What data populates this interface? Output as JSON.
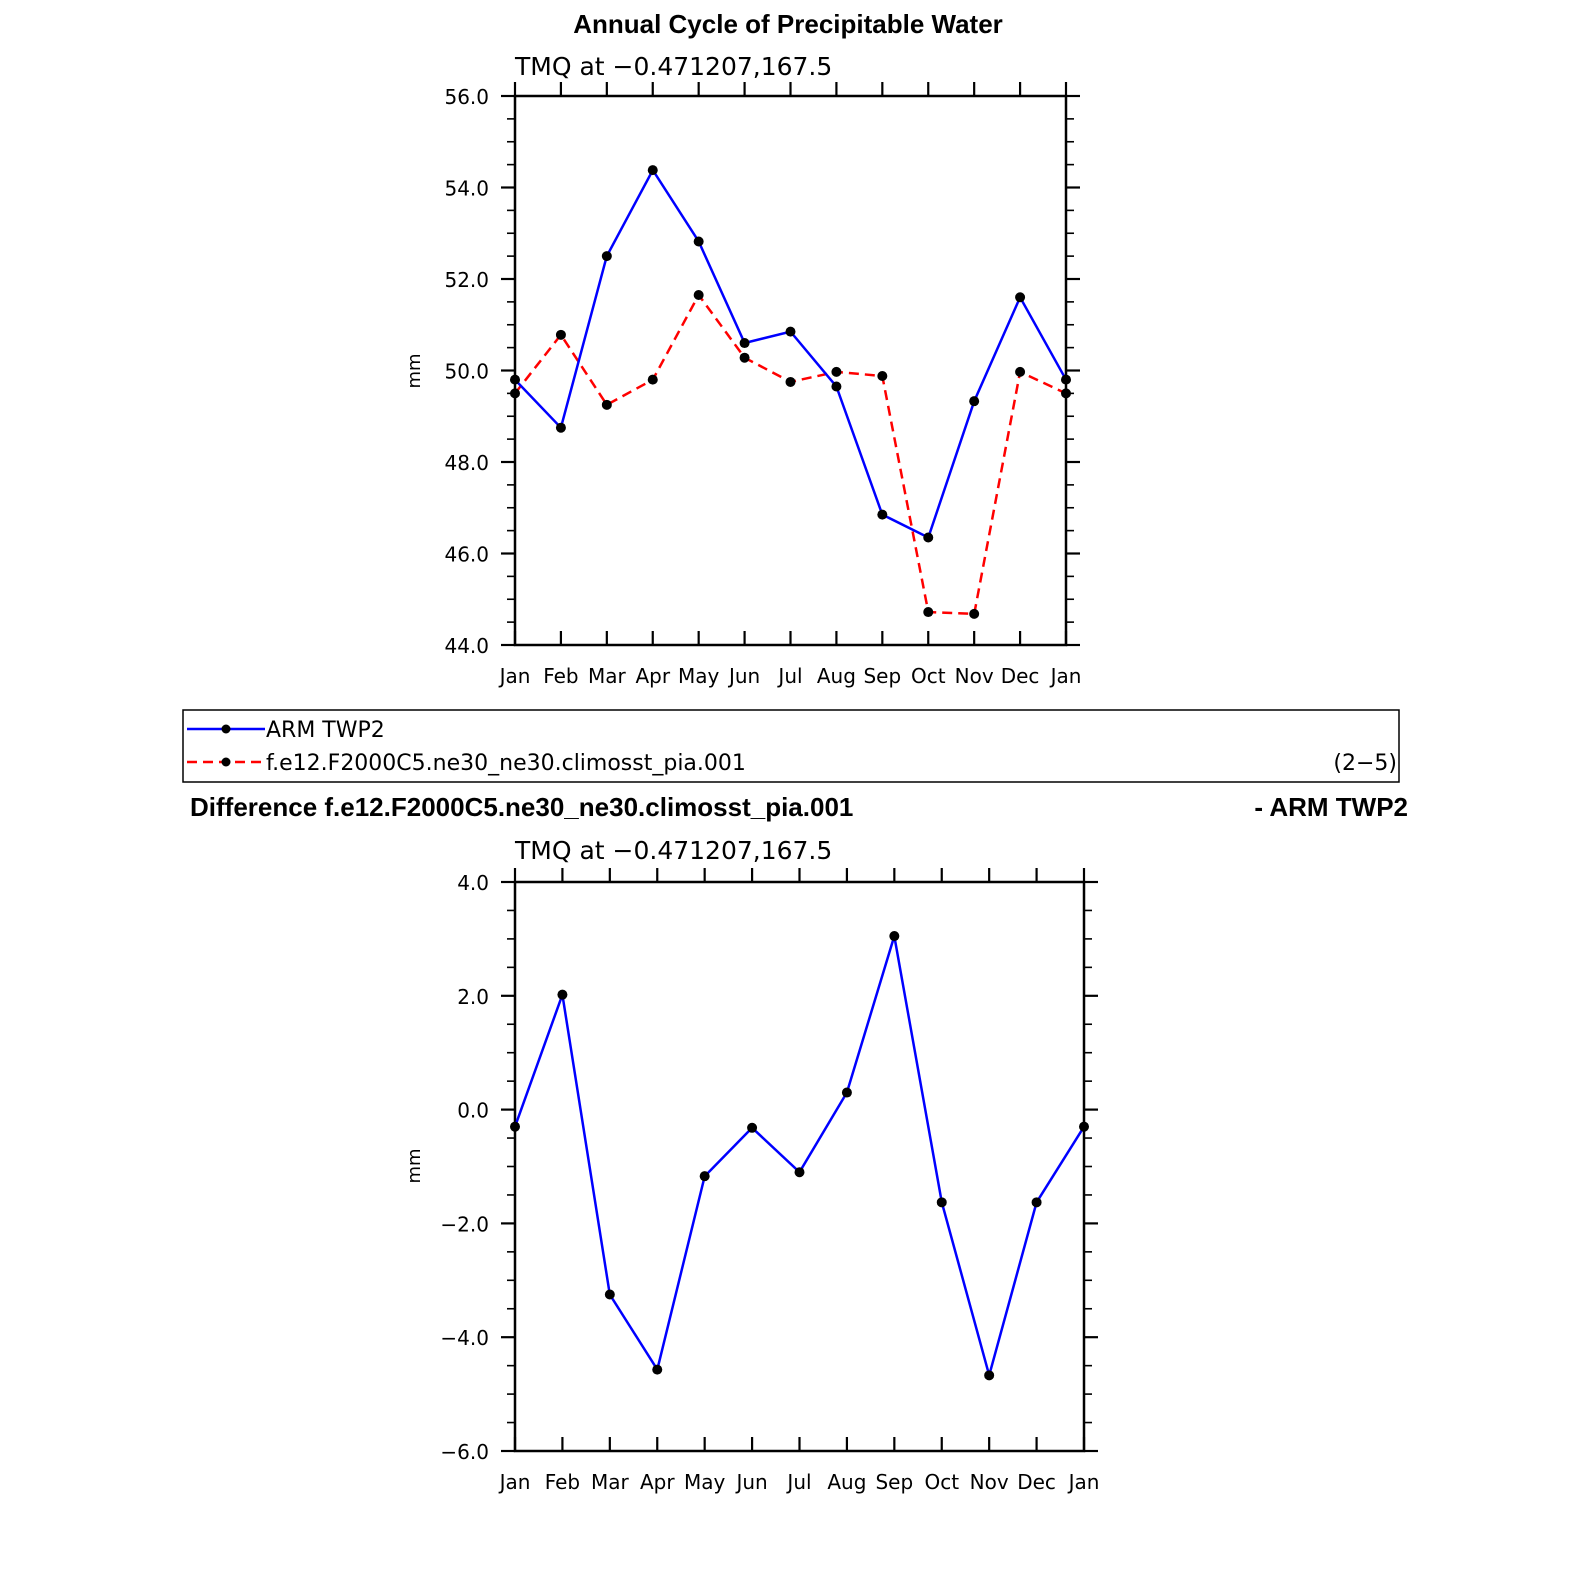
{
  "chart_data": [
    {
      "type": "line",
      "title": "Annual Cycle of Precipitable Water",
      "subtitle": "TMQ at −0.471207,167.5",
      "xlabel": "",
      "ylabel": "mm",
      "categories": [
        "Jan",
        "Feb",
        "Mar",
        "Apr",
        "May",
        "Jun",
        "Jul",
        "Aug",
        "Sep",
        "Oct",
        "Nov",
        "Dec",
        "Jan"
      ],
      "ylim": [
        44.0,
        56.0
      ],
      "yticks": [
        44.0,
        46.0,
        48.0,
        50.0,
        52.0,
        54.0,
        56.0
      ],
      "ytick_labels": [
        "44.0",
        "46.0",
        "48.0",
        "50.0",
        "52.0",
        "54.0",
        "56.0"
      ],
      "series": [
        {
          "name": "ARM TWP2",
          "color": "#0000ff",
          "style": "solid",
          "values": [
            49.8,
            48.75,
            52.5,
            54.38,
            52.82,
            50.6,
            50.85,
            49.65,
            46.85,
            46.35,
            49.33,
            51.6,
            49.8
          ]
        },
        {
          "name": "f.e12.F2000C5.ne30_ne30.climosst_pia.001",
          "color": "#ff0000",
          "style": "dashed",
          "values": [
            49.5,
            50.78,
            49.25,
            49.8,
            51.65,
            50.28,
            49.75,
            49.97,
            49.88,
            44.72,
            44.68,
            49.97,
            49.5
          ]
        }
      ],
      "legend": {
        "entries": [
          "ARM TWP2",
          "f.e12.F2000C5.ne30_ne30.climosst_pia.001"
        ],
        "note": "(2−5)",
        "placement": "below"
      }
    },
    {
      "type": "line",
      "title_left": "Difference f.e12.F2000C5.ne30_ne30.climosst_pia.001",
      "title_right": "- ARM TWP2",
      "subtitle": "TMQ at −0.471207,167.5",
      "xlabel": "",
      "ylabel": "mm",
      "categories": [
        "Jan",
        "Feb",
        "Mar",
        "Apr",
        "May",
        "Jun",
        "Jul",
        "Aug",
        "Sep",
        "Oct",
        "Nov",
        "Dec",
        "Jan"
      ],
      "ylim": [
        -6.0,
        4.0
      ],
      "yticks": [
        -6.0,
        -4.0,
        -2.0,
        0.0,
        2.0,
        4.0
      ],
      "ytick_labels": [
        "−6.0",
        "−4.0",
        "−2.0",
        "0.0",
        "2.0",
        "4.0"
      ],
      "series": [
        {
          "name": "Difference",
          "color": "#0000ff",
          "style": "solid",
          "values": [
            -0.3,
            2.02,
            -3.25,
            -4.57,
            -1.17,
            -0.32,
            -1.1,
            0.3,
            3.05,
            -1.63,
            -4.67,
            -1.63,
            -0.3
          ]
        }
      ]
    }
  ]
}
